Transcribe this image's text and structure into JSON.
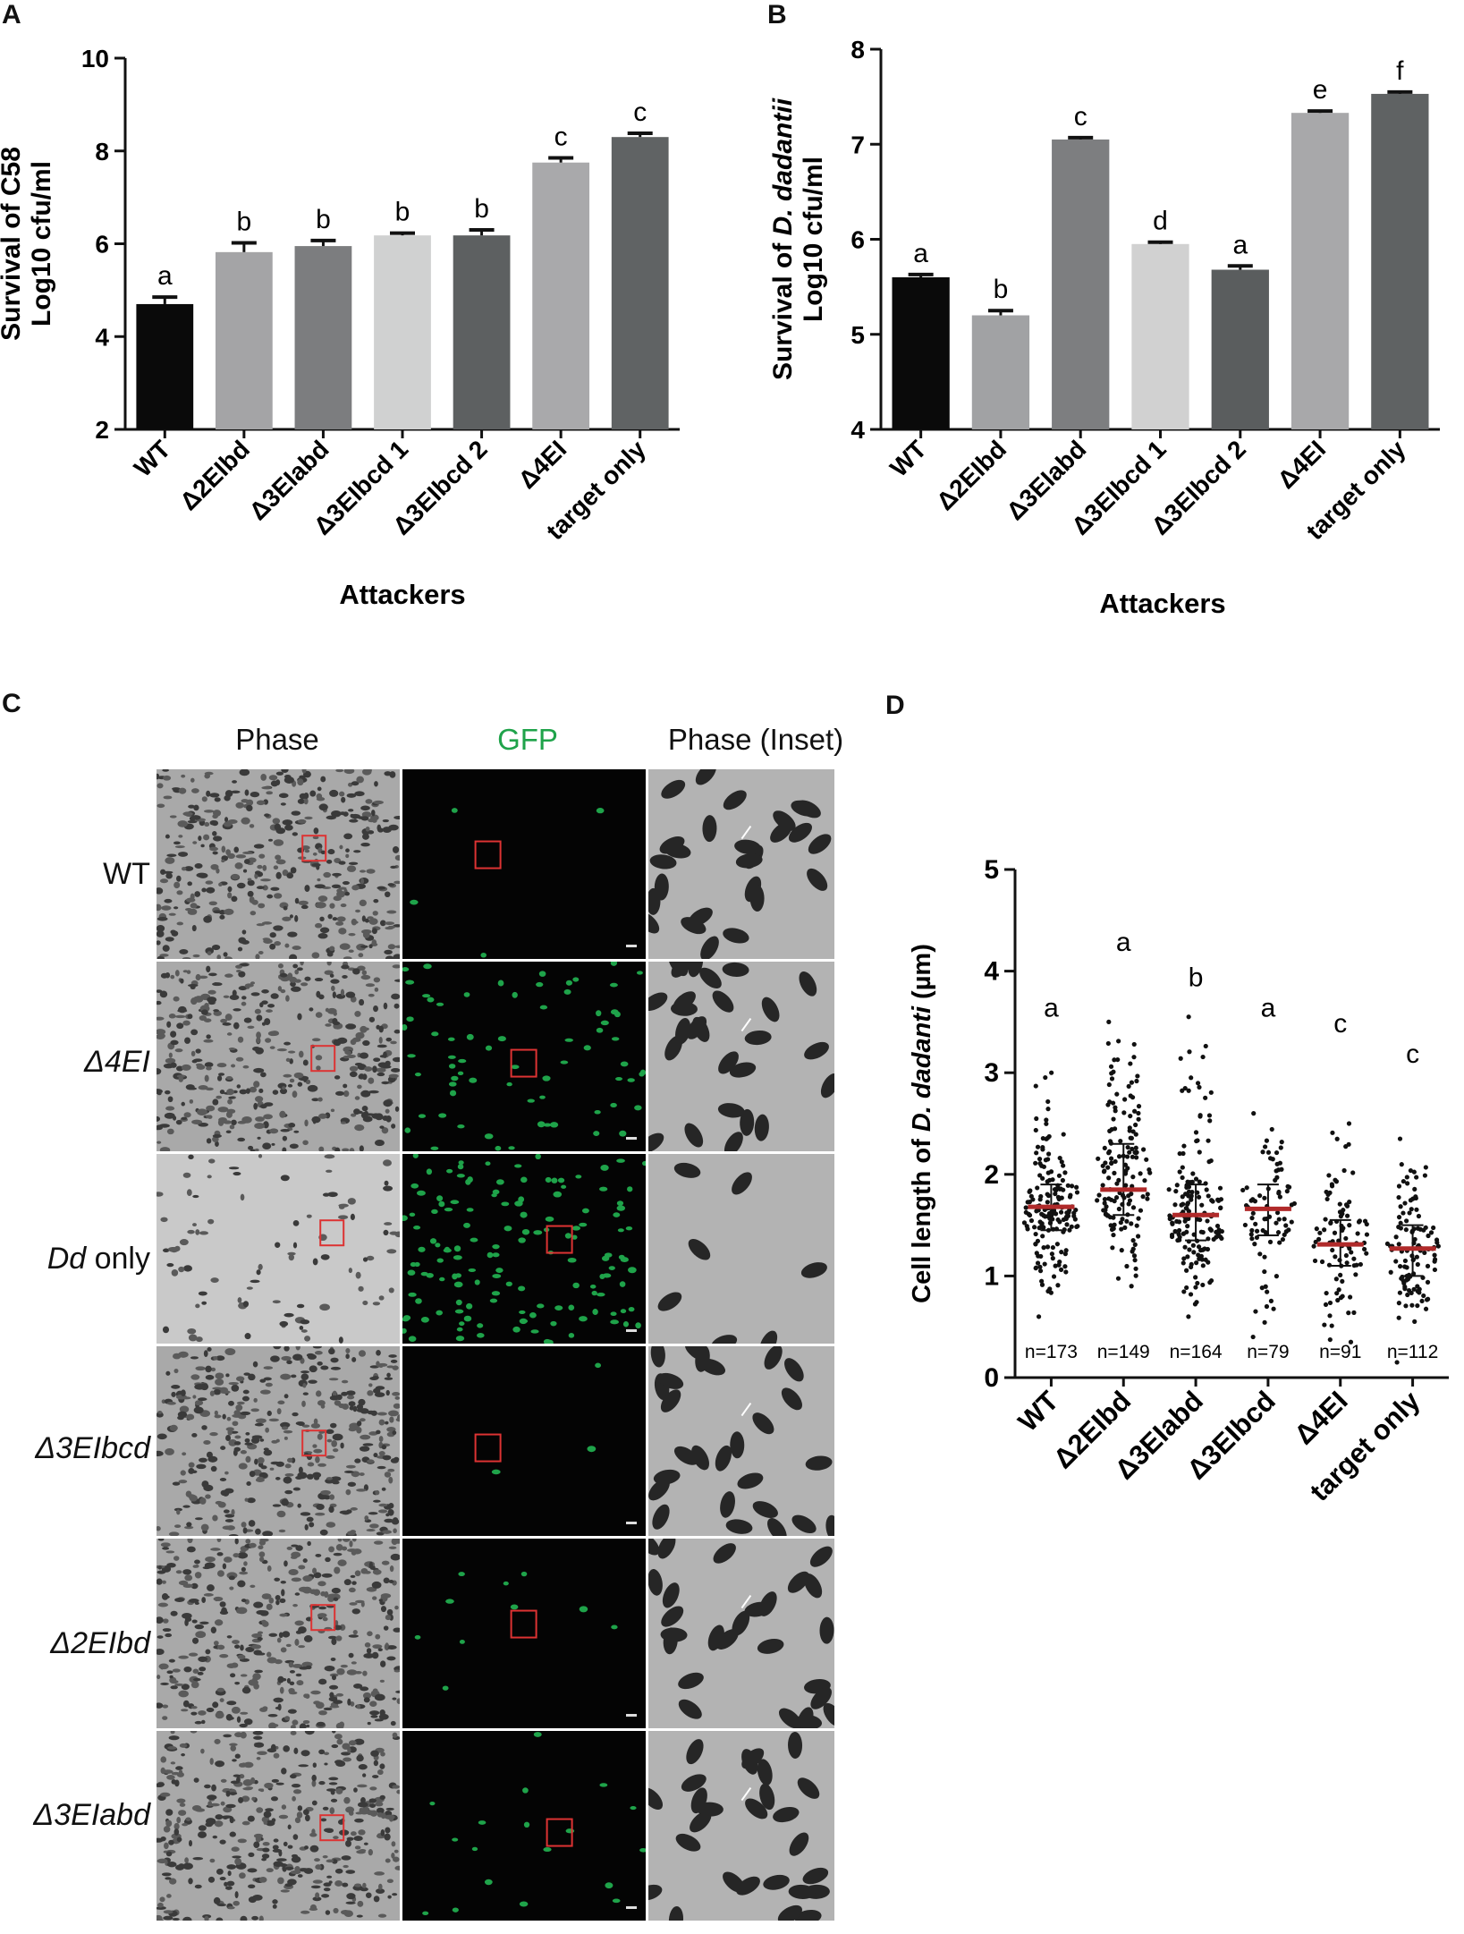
{
  "panels": {
    "A": {
      "letter": "A",
      "chart_data": {
        "type": "bar",
        "categories": [
          "WT",
          "Δ2EIbd",
          "Δ3EIabd",
          "Δ3EIbcd 1",
          "Δ3EIbcd 2",
          "Δ4EI",
          "target only"
        ],
        "values": [
          4.7,
          5.82,
          5.95,
          6.18,
          6.18,
          7.75,
          8.3
        ],
        "errors": [
          0.15,
          0.2,
          0.12,
          0.05,
          0.12,
          0.1,
          0.08
        ],
        "letters": [
          "a",
          "b",
          "b",
          "b",
          "b",
          "c",
          "c"
        ],
        "colors": [
          "#0a0a0a",
          "#a4a4a6",
          "#7c7d7f",
          "#d0d1d1",
          "#5d6061",
          "#a9a9ab",
          "#606364"
        ],
        "ylabel_line1": "Survival of C58",
        "ylabel_line2": "Log10 cfu/ml",
        "xlabel": "Attackers",
        "ylim": [
          2,
          10
        ],
        "yticks": [
          "2",
          "4",
          "6",
          "8",
          "10"
        ]
      }
    },
    "B": {
      "letter": "B",
      "chart_data": {
        "type": "bar",
        "categories": [
          "WT",
          "Δ2EIbd",
          "Δ3EIabd",
          "Δ3EIbcd 1",
          "Δ3EIbcd 2",
          "Δ4EI",
          "target only"
        ],
        "values": [
          5.6,
          5.2,
          7.05,
          5.95,
          5.68,
          7.33,
          7.53
        ],
        "errors": [
          0.03,
          0.05,
          0.02,
          0.02,
          0.04,
          0.02,
          0.02
        ],
        "letters": [
          "a",
          "b",
          "c",
          "d",
          "a",
          "e",
          "f"
        ],
        "colors": [
          "#0a0a0a",
          "#a1a2a4",
          "#7d7e80",
          "#d1d1d1",
          "#5a5d5e",
          "#a8a8aa",
          "#5f6263"
        ],
        "ylabel_line1_prefix": "Survival of ",
        "ylabel_line1_italic": "D. dadantii",
        "ylabel_line2": "Log10 cfu/ml",
        "xlabel": "Attackers",
        "ylim": [
          4,
          8
        ],
        "yticks": [
          "4",
          "5",
          "6",
          "7",
          "8"
        ]
      }
    },
    "C": {
      "letter": "C",
      "columns": [
        "Phase",
        "GFP",
        "Phase (Inset)"
      ],
      "gfp_color": "#1fa34a",
      "rows": [
        {
          "label_italic": "WT",
          "label_rest": "",
          "gfp_count": 4
        },
        {
          "label_italic": "Δ4EI",
          "label_rest": "",
          "gfp_count": 70
        },
        {
          "label_italic": "Dd",
          "label_rest": " only",
          "gfp_count": 140
        },
        {
          "label_italic": "Δ3EIbcd",
          "label_rest": "",
          "gfp_count": 3
        },
        {
          "label_italic": "Δ2EIbd",
          "label_rest": "",
          "gfp_count": 10
        },
        {
          "label_italic": "Δ3EIabd",
          "label_rest": "",
          "gfp_count": 18
        }
      ]
    },
    "D": {
      "letter": "D",
      "chart_data": {
        "type": "scatter",
        "categories": [
          "WT",
          "Δ2EIbd",
          "Δ3EIabd",
          "Δ3EIbcd",
          "Δ4EI",
          "target only"
        ],
        "medians": [
          1.68,
          1.85,
          1.6,
          1.66,
          1.31,
          1.27
        ],
        "iqr": [
          [
            1.45,
            1.9
          ],
          [
            1.6,
            2.3
          ],
          [
            1.35,
            1.9
          ],
          [
            1.4,
            1.9
          ],
          [
            1.1,
            1.55
          ],
          [
            1.0,
            1.5
          ]
        ],
        "ranges": [
          [
            0.6,
            3.0
          ],
          [
            0.9,
            3.5
          ],
          [
            0.6,
            3.55
          ],
          [
            0.4,
            2.6
          ],
          [
            0.35,
            2.5
          ],
          [
            0.15,
            2.35
          ]
        ],
        "n_labels": [
          "n=173",
          "n=149",
          "n=164",
          "n=79",
          "n=91",
          "n=112"
        ],
        "n_counts": [
          173,
          149,
          164,
          79,
          91,
          112
        ],
        "letters": [
          "a",
          "a",
          "b",
          "a",
          "c",
          "c"
        ],
        "letter_heights": [
          3.55,
          4.2,
          3.85,
          3.55,
          3.4,
          3.1
        ],
        "median_color": "#b02a2a",
        "ylabel_prefix": "Cell length of ",
        "ylabel_italic": "D. dadanti",
        "ylabel_suffix": " (µm)",
        "ylim": [
          0,
          5
        ],
        "yticks": [
          "0",
          "1",
          "2",
          "3",
          "4",
          "5"
        ]
      }
    }
  }
}
